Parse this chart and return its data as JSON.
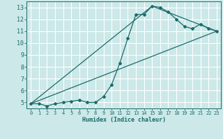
{
  "xlabel": "Humidex (Indice chaleur)",
  "background_color": "#cce8e8",
  "grid_color": "#ffffff",
  "line_color": "#1a6b6b",
  "xlim": [
    -0.5,
    23.5
  ],
  "ylim": [
    4.5,
    13.5
  ],
  "xticks": [
    0,
    1,
    2,
    3,
    4,
    5,
    6,
    7,
    8,
    9,
    10,
    11,
    12,
    13,
    14,
    15,
    16,
    17,
    18,
    19,
    20,
    21,
    22,
    23
  ],
  "yticks": [
    5,
    6,
    7,
    8,
    9,
    10,
    11,
    12,
    13
  ],
  "curve1_x": [
    0,
    1,
    2,
    3,
    4,
    5,
    6,
    7,
    8,
    9,
    10,
    11,
    12,
    13,
    14,
    15,
    16,
    17,
    18,
    19,
    20,
    21,
    22,
    23
  ],
  "curve1_y": [
    4.9,
    4.9,
    4.7,
    4.9,
    5.0,
    5.1,
    5.2,
    5.0,
    5.0,
    5.5,
    6.5,
    8.3,
    10.4,
    12.4,
    12.4,
    13.1,
    13.0,
    12.6,
    12.0,
    11.4,
    11.2,
    11.6,
    11.2,
    11.0
  ],
  "line1_x": [
    0,
    15,
    23
  ],
  "line1_y": [
    4.9,
    13.1,
    11.0
  ],
  "line2_x": [
    0,
    23
  ],
  "line2_y": [
    4.9,
    11.0
  ]
}
